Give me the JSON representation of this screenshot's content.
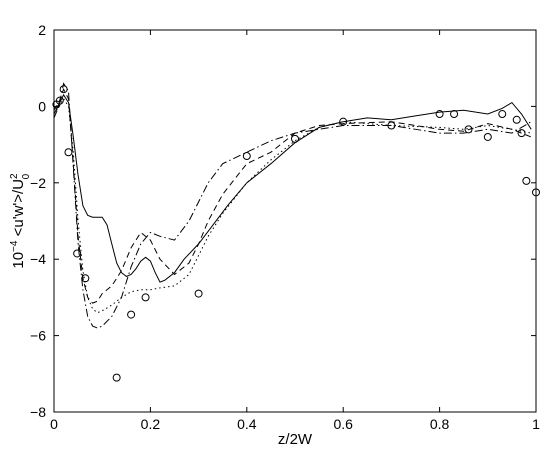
{
  "chart_data": {
    "type": "line",
    "xlabel": "z/2W",
    "ylabel_base": "10",
    "ylabel_exp": "−4",
    "ylabel_main": " <u'w'>/U",
    "ylabel_sup": "2",
    "ylabel_sub": "0",
    "xlim": [
      0,
      1
    ],
    "ylim": [
      -8,
      2
    ],
    "xticks": [
      0,
      0.2,
      0.4,
      0.6,
      0.8,
      1
    ],
    "xtick_labels": [
      "0",
      "0.2",
      "0.4",
      "0.6",
      "0.8",
      "1"
    ],
    "yticks": [
      -8,
      -6,
      -4,
      -2,
      0,
      2
    ],
    "ytick_labels": [
      "−8",
      "−6",
      "−4",
      "−2",
      "0",
      "2"
    ],
    "grid": false,
    "series": [
      {
        "style": "solid",
        "x": [
          0,
          0.01,
          0.02,
          0.03,
          0.04,
          0.05,
          0.06,
          0.07,
          0.08,
          0.09,
          0.1,
          0.11,
          0.12,
          0.13,
          0.14,
          0.15,
          0.16,
          0.17,
          0.18,
          0.19,
          0.2,
          0.21,
          0.22,
          0.23,
          0.25,
          0.27,
          0.3,
          0.33,
          0.36,
          0.4,
          0.45,
          0.5,
          0.55,
          0.6,
          0.65,
          0.7,
          0.75,
          0.8,
          0.85,
          0.9,
          0.93,
          0.95,
          0.97,
          0.99
        ],
        "y": [
          -0.2,
          0.05,
          0.3,
          0.1,
          -0.8,
          -1.8,
          -2.6,
          -2.85,
          -2.9,
          -2.9,
          -2.9,
          -3.1,
          -3.6,
          -4.1,
          -4.35,
          -4.45,
          -4.4,
          -4.25,
          -4.05,
          -3.95,
          -4.05,
          -4.35,
          -4.6,
          -4.55,
          -4.35,
          -4.0,
          -3.6,
          -3.1,
          -2.6,
          -2.0,
          -1.5,
          -0.95,
          -0.55,
          -0.4,
          -0.3,
          -0.35,
          -0.25,
          -0.15,
          -0.1,
          -0.2,
          -0.05,
          0.1,
          -0.2,
          -0.6
        ]
      },
      {
        "style": "dashed",
        "x": [
          0,
          0.01,
          0.02,
          0.03,
          0.04,
          0.05,
          0.06,
          0.07,
          0.08,
          0.09,
          0.1,
          0.12,
          0.14,
          0.16,
          0.18,
          0.2,
          0.22,
          0.25,
          0.28,
          0.3,
          0.32,
          0.35,
          0.4,
          0.45,
          0.5,
          0.55,
          0.6,
          0.7,
          0.8,
          0.85,
          0.9,
          0.95,
          0.99
        ],
        "y": [
          -0.1,
          0.1,
          0.45,
          0.2,
          -1.5,
          -3.4,
          -4.5,
          -5.0,
          -5.15,
          -5.1,
          -4.9,
          -4.7,
          -4.3,
          -3.7,
          -3.3,
          -3.5,
          -4.0,
          -4.4,
          -4.1,
          -3.6,
          -3.0,
          -2.3,
          -1.5,
          -1.2,
          -0.7,
          -0.5,
          -0.45,
          -0.4,
          -0.6,
          -0.65,
          -0.45,
          -0.6,
          -0.8
        ]
      },
      {
        "style": "dotted",
        "x": [
          0,
          0.01,
          0.02,
          0.03,
          0.04,
          0.05,
          0.06,
          0.07,
          0.08,
          0.09,
          0.1,
          0.12,
          0.14,
          0.16,
          0.18,
          0.2,
          0.22,
          0.25,
          0.28,
          0.3,
          0.32,
          0.35,
          0.4,
          0.45,
          0.5,
          0.55,
          0.6,
          0.7,
          0.8,
          0.85,
          0.9,
          0.95,
          0.99
        ],
        "y": [
          -0.2,
          0.0,
          0.2,
          0.0,
          -1.2,
          -3.0,
          -4.3,
          -5.0,
          -5.3,
          -5.4,
          -5.35,
          -5.2,
          -5.0,
          -4.85,
          -4.8,
          -4.8,
          -4.75,
          -4.7,
          -4.4,
          -3.9,
          -3.4,
          -2.8,
          -2.0,
          -1.4,
          -0.9,
          -0.55,
          -0.4,
          -0.5,
          -0.55,
          -0.6,
          -0.5,
          -0.6,
          -0.7
        ]
      },
      {
        "style": "dashdot",
        "x": [
          0,
          0.01,
          0.02,
          0.03,
          0.04,
          0.05,
          0.06,
          0.07,
          0.08,
          0.09,
          0.1,
          0.12,
          0.14,
          0.16,
          0.18,
          0.2,
          0.22,
          0.25,
          0.28,
          0.3,
          0.32,
          0.35,
          0.4,
          0.45,
          0.5,
          0.55,
          0.6,
          0.7,
          0.8,
          0.85,
          0.9,
          0.95,
          0.99
        ],
        "y": [
          -0.3,
          0.0,
          0.6,
          0.4,
          -1.6,
          -3.6,
          -4.8,
          -5.5,
          -5.75,
          -5.8,
          -5.75,
          -5.5,
          -5.0,
          -4.2,
          -3.6,
          -3.3,
          -3.4,
          -3.5,
          -3.0,
          -2.5,
          -2.0,
          -1.5,
          -1.2,
          -0.9,
          -0.7,
          -0.6,
          -0.5,
          -0.5,
          -0.7,
          -0.7,
          -0.6,
          -0.7,
          -0.4
        ]
      }
    ],
    "markers": {
      "symbol": "circle",
      "x": [
        0.005,
        0.012,
        0.02,
        0.03,
        0.048,
        0.065,
        0.13,
        0.16,
        0.19,
        0.3,
        0.4,
        0.5,
        0.6,
        0.7,
        0.8,
        0.83,
        0.86,
        0.9,
        0.93,
        0.96,
        0.97,
        0.98,
        1.0
      ],
      "y": [
        0.05,
        0.15,
        0.45,
        -1.2,
        -3.85,
        -4.5,
        -7.1,
        -5.45,
        -5.0,
        -4.9,
        -1.3,
        -0.85,
        -0.4,
        -0.5,
        -0.2,
        -0.2,
        -0.6,
        -0.8,
        -0.2,
        -0.35,
        -0.7,
        -1.95,
        -2.25
      ]
    }
  }
}
